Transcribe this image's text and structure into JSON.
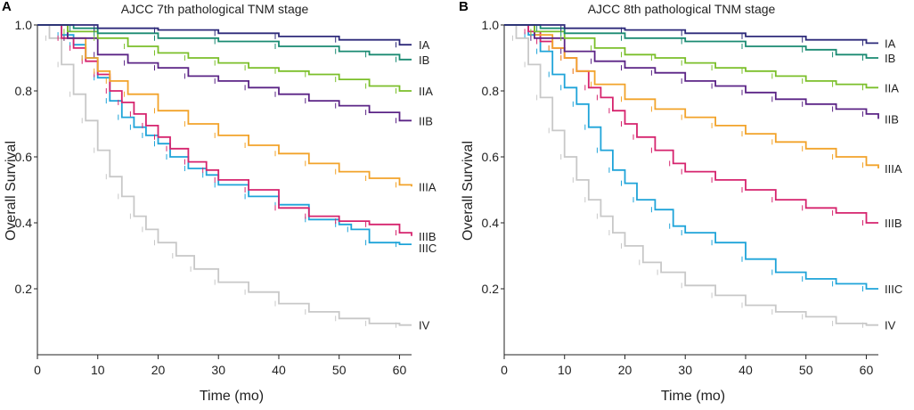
{
  "chart_data": [
    {
      "type": "line",
      "panel": "A",
      "title": "AJCC 7th pathological TNM stage",
      "xlabel": "Time (mo)",
      "ylabel": "Overall Survival",
      "xlim": [
        0,
        62
      ],
      "ylim": [
        0,
        1.0
      ],
      "xticks": [
        "0",
        "10",
        "20",
        "30",
        "40",
        "50",
        "60"
      ],
      "yticks": [
        "0.2",
        "0.4",
        "0.6",
        "0.8",
        "1.0"
      ],
      "grid": false,
      "legend": "labels at line ends",
      "series": [
        {
          "name": "IA",
          "color": "#2e2a7a",
          "x": [
            2,
            10,
            20,
            30,
            40,
            50,
            60,
            62
          ],
          "y": [
            1.0,
            0.99,
            0.985,
            0.975,
            0.965,
            0.955,
            0.94,
            0.94
          ]
        },
        {
          "name": "IB",
          "color": "#1a8a72",
          "x": [
            2,
            6,
            10,
            20,
            30,
            40,
            50,
            55,
            60,
            62
          ],
          "y": [
            1.0,
            0.99,
            0.975,
            0.96,
            0.95,
            0.935,
            0.92,
            0.91,
            0.895,
            0.895
          ]
        },
        {
          "name": "IIA",
          "color": "#7bbf2a",
          "x": [
            2,
            5,
            10,
            15,
            20,
            25,
            30,
            35,
            40,
            45,
            50,
            55,
            60,
            62
          ],
          "y": [
            1.0,
            0.98,
            0.96,
            0.935,
            0.915,
            0.9,
            0.885,
            0.87,
            0.86,
            0.85,
            0.835,
            0.815,
            0.8,
            0.8
          ]
        },
        {
          "name": "IIB",
          "color": "#5b2486",
          "x": [
            2,
            5,
            10,
            15,
            20,
            25,
            30,
            35,
            40,
            45,
            50,
            55,
            60,
            62
          ],
          "y": [
            1.0,
            0.96,
            0.91,
            0.885,
            0.87,
            0.845,
            0.83,
            0.81,
            0.79,
            0.77,
            0.755,
            0.735,
            0.71,
            0.71
          ]
        },
        {
          "name": "IIIA",
          "color": "#f2a32a",
          "x": [
            2,
            5,
            8,
            10,
            12,
            15,
            20,
            25,
            30,
            35,
            40,
            45,
            50,
            55,
            60,
            62
          ],
          "y": [
            1.0,
            0.96,
            0.9,
            0.86,
            0.83,
            0.79,
            0.74,
            0.7,
            0.665,
            0.635,
            0.61,
            0.58,
            0.555,
            0.535,
            0.515,
            0.51
          ]
        },
        {
          "name": "IIIB",
          "color": "#d6246e",
          "x": [
            2,
            4,
            6,
            8,
            10,
            12,
            14,
            16,
            18,
            20,
            22,
            25,
            28,
            30,
            35,
            40,
            45,
            50,
            55,
            60,
            62
          ],
          "y": [
            1.0,
            0.96,
            0.93,
            0.89,
            0.85,
            0.8,
            0.765,
            0.73,
            0.695,
            0.66,
            0.625,
            0.585,
            0.56,
            0.53,
            0.5,
            0.445,
            0.42,
            0.405,
            0.395,
            0.37,
            0.36
          ]
        },
        {
          "name": "IIIC",
          "color": "#1fa4d9",
          "x": [
            2,
            4,
            6,
            8,
            10,
            12,
            14,
            16,
            18,
            20,
            22,
            25,
            28,
            30,
            35,
            40,
            45,
            50,
            52,
            55,
            60,
            62
          ],
          "y": [
            1.0,
            0.97,
            0.94,
            0.9,
            0.84,
            0.77,
            0.72,
            0.69,
            0.665,
            0.64,
            0.6,
            0.565,
            0.545,
            0.515,
            0.48,
            0.455,
            0.41,
            0.395,
            0.38,
            0.34,
            0.335,
            0.335
          ]
        },
        {
          "name": "IV",
          "color": "#c8c8c8",
          "x": [
            1,
            2,
            4,
            6,
            8,
            10,
            12,
            14,
            16,
            18,
            20,
            23,
            26,
            30,
            35,
            40,
            45,
            50,
            55,
            60,
            62
          ],
          "y": [
            1.0,
            0.96,
            0.88,
            0.79,
            0.71,
            0.62,
            0.54,
            0.48,
            0.42,
            0.38,
            0.34,
            0.3,
            0.26,
            0.22,
            0.19,
            0.155,
            0.13,
            0.11,
            0.095,
            0.09,
            0.09
          ]
        }
      ]
    },
    {
      "type": "line",
      "panel": "B",
      "title": "AJCC 8th pathological TNM stage",
      "xlabel": "Time (mo)",
      "ylabel": "Overall Survival",
      "xlim": [
        0,
        62
      ],
      "ylim": [
        0,
        1.0
      ],
      "xticks": [
        "0",
        "10",
        "20",
        "30",
        "40",
        "50",
        "60"
      ],
      "yticks": [
        "0.2",
        "0.4",
        "0.6",
        "0.8",
        "1.0"
      ],
      "grid": false,
      "legend": "labels at line ends",
      "series": [
        {
          "name": "IA",
          "color": "#2e2a7a",
          "x": [
            2,
            10,
            20,
            30,
            40,
            50,
            60,
            62
          ],
          "y": [
            1.0,
            0.99,
            0.985,
            0.975,
            0.965,
            0.955,
            0.945,
            0.945
          ]
        },
        {
          "name": "IB",
          "color": "#1a8a72",
          "x": [
            2,
            6,
            10,
            20,
            30,
            40,
            50,
            55,
            60,
            62
          ],
          "y": [
            1.0,
            0.99,
            0.975,
            0.96,
            0.95,
            0.935,
            0.925,
            0.91,
            0.9,
            0.9
          ]
        },
        {
          "name": "IIA",
          "color": "#7bbf2a",
          "x": [
            2,
            5,
            10,
            15,
            20,
            25,
            30,
            35,
            40,
            45,
            50,
            55,
            60,
            62
          ],
          "y": [
            1.0,
            0.98,
            0.96,
            0.93,
            0.91,
            0.9,
            0.885,
            0.87,
            0.86,
            0.845,
            0.83,
            0.82,
            0.81,
            0.81
          ]
        },
        {
          "name": "IIB",
          "color": "#5b2486",
          "x": [
            2,
            5,
            10,
            15,
            20,
            25,
            30,
            35,
            40,
            45,
            50,
            55,
            60,
            62
          ],
          "y": [
            1.0,
            0.96,
            0.92,
            0.89,
            0.87,
            0.855,
            0.83,
            0.815,
            0.795,
            0.775,
            0.76,
            0.745,
            0.73,
            0.715
          ]
        },
        {
          "name": "IIIA",
          "color": "#f2a32a",
          "x": [
            2,
            5,
            8,
            10,
            12,
            15,
            20,
            25,
            30,
            35,
            40,
            45,
            50,
            55,
            60,
            62
          ],
          "y": [
            1.0,
            0.97,
            0.93,
            0.9,
            0.86,
            0.82,
            0.775,
            0.745,
            0.72,
            0.695,
            0.67,
            0.645,
            0.625,
            0.6,
            0.575,
            0.565
          ]
        },
        {
          "name": "IIIB",
          "color": "#d6246e",
          "x": [
            2,
            4,
            6,
            8,
            10,
            12,
            14,
            16,
            18,
            20,
            22,
            25,
            28,
            30,
            35,
            40,
            45,
            50,
            55,
            60,
            62
          ],
          "y": [
            1.0,
            0.98,
            0.95,
            0.93,
            0.9,
            0.86,
            0.81,
            0.78,
            0.74,
            0.7,
            0.66,
            0.62,
            0.58,
            0.555,
            0.53,
            0.5,
            0.47,
            0.445,
            0.43,
            0.4,
            0.4
          ]
        },
        {
          "name": "IIIC",
          "color": "#1fa4d9",
          "x": [
            2,
            4,
            6,
            8,
            10,
            12,
            14,
            16,
            18,
            20,
            22,
            25,
            28,
            30,
            35,
            40,
            45,
            50,
            55,
            60,
            62
          ],
          "y": [
            1.0,
            0.97,
            0.92,
            0.85,
            0.81,
            0.76,
            0.69,
            0.62,
            0.56,
            0.52,
            0.47,
            0.44,
            0.39,
            0.37,
            0.34,
            0.29,
            0.25,
            0.23,
            0.215,
            0.2,
            0.2
          ]
        },
        {
          "name": "IV",
          "color": "#c8c8c8",
          "x": [
            1,
            2,
            4,
            6,
            8,
            10,
            12,
            14,
            16,
            18,
            20,
            23,
            26,
            30,
            35,
            40,
            45,
            50,
            55,
            60,
            62
          ],
          "y": [
            1.0,
            0.96,
            0.88,
            0.78,
            0.68,
            0.6,
            0.53,
            0.47,
            0.42,
            0.37,
            0.33,
            0.28,
            0.25,
            0.21,
            0.18,
            0.15,
            0.13,
            0.115,
            0.095,
            0.09,
            0.09
          ]
        }
      ]
    }
  ]
}
